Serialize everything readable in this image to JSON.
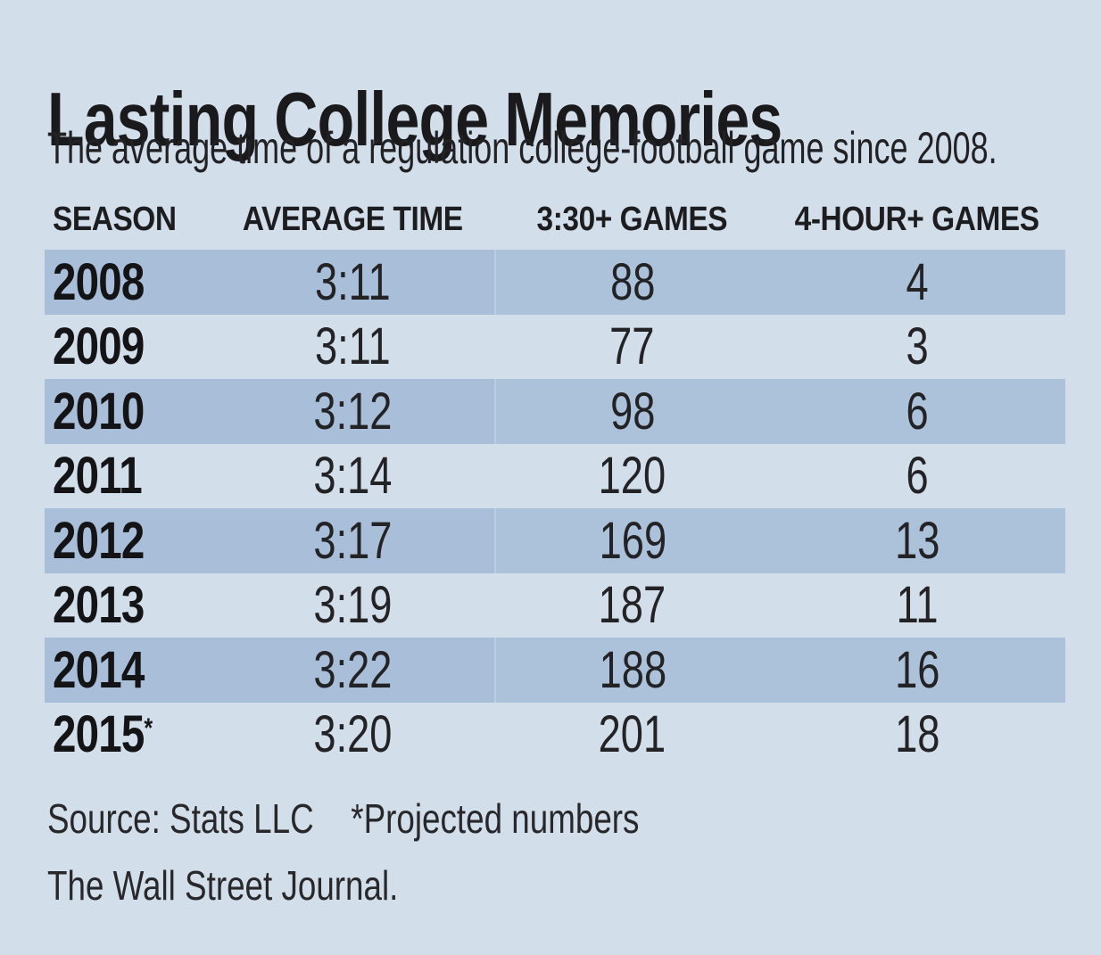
{
  "chart_data": {
    "type": "table",
    "title": "Lasting College Memories",
    "subtitle": "The average time of a regulation college-football game since 2008.",
    "columns": [
      "SEASON",
      "AVERAGE TIME",
      "3:30+ GAMES",
      "4-HOUR+ GAMES"
    ],
    "rows": [
      {
        "season": "2008",
        "note": "",
        "average_time": "3:11",
        "games_330_plus": "88",
        "games_4hour_plus": "4"
      },
      {
        "season": "2009",
        "note": "",
        "average_time": "3:11",
        "games_330_plus": "77",
        "games_4hour_plus": "3"
      },
      {
        "season": "2010",
        "note": "",
        "average_time": "3:12",
        "games_330_plus": "98",
        "games_4hour_plus": "6"
      },
      {
        "season": "2011",
        "note": "",
        "average_time": "3:14",
        "games_330_plus": "120",
        "games_4hour_plus": "6"
      },
      {
        "season": "2012",
        "note": "",
        "average_time": "3:17",
        "games_330_plus": "169",
        "games_4hour_plus": "13"
      },
      {
        "season": "2013",
        "note": "",
        "average_time": "3:19",
        "games_330_plus": "187",
        "games_4hour_plus": "11"
      },
      {
        "season": "2014",
        "note": "",
        "average_time": "3:22",
        "games_330_plus": "188",
        "games_4hour_plus": "16"
      },
      {
        "season": "2015",
        "note": "*",
        "average_time": "3:20",
        "games_330_plus": "201",
        "games_4hour_plus": "18"
      }
    ],
    "footer": {
      "source": "Source: Stats LLC",
      "note": "*Projected numbers",
      "credit": "The Wall Street Journal."
    }
  },
  "colors": {
    "background": "#d3deeb",
    "row_shade": "#a9bed8",
    "row_shade_right": "#acc1da",
    "text": "#1e1e21"
  }
}
